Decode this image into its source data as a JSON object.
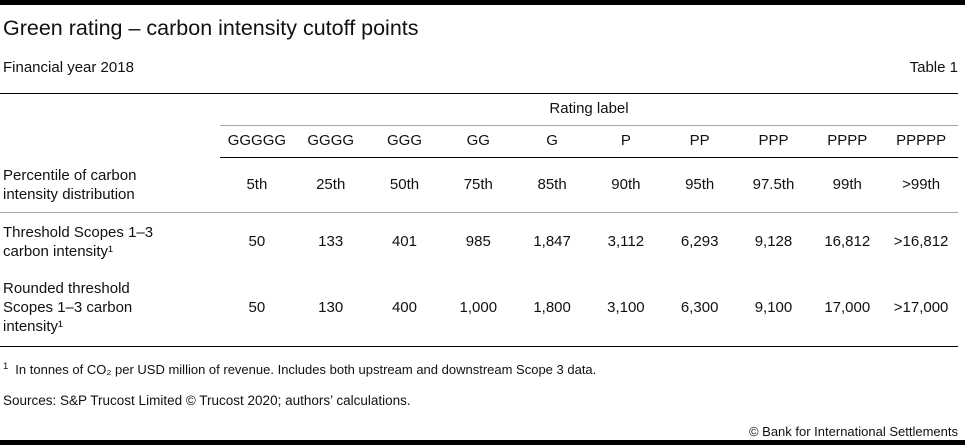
{
  "page": {
    "title": "Green rating – carbon intensity cutoff points",
    "subtitle": "Financial year 2018",
    "table_ref": "Table 1",
    "copyright": "© Bank for International Settlements"
  },
  "table": {
    "group_header": "Rating label",
    "columns": [
      "GGGGG",
      "GGGG",
      "GGG",
      "GG",
      "G",
      "P",
      "PP",
      "PPP",
      "PPPP",
      "PPPPP"
    ],
    "rows": [
      {
        "label": "Percentile of carbon intensity distribution",
        "values": [
          "5th",
          "25th",
          "50th",
          "75th",
          "85th",
          "90th",
          "95th",
          "97.5th",
          "99th",
          ">99th"
        ]
      },
      {
        "label": "Threshold Scopes 1–3 carbon intensity¹",
        "values": [
          "50",
          "133",
          "401",
          "985",
          "1,847",
          "3,112",
          "6,293",
          "9,128",
          "16,812",
          ">16,812"
        ]
      },
      {
        "label": "Rounded threshold Scopes 1–3 carbon intensity¹",
        "values": [
          "50",
          "130",
          "400",
          "1,000",
          "1,800",
          "3,100",
          "6,300",
          "9,100",
          "17,000",
          ">17,000"
        ]
      }
    ]
  },
  "footnote": {
    "marker": "1",
    "text": "In tonnes of CO₂ per USD million of revenue. Includes both upstream and downstream Scope 3 data."
  },
  "sources": "Sources: S&P Trucost Limited © Trucost 2020; authors’ calculations.",
  "colors": {
    "rule_black": "#000000",
    "rule_gray": "#a6a6a6",
    "text": "#111111",
    "background": "#ffffff"
  }
}
